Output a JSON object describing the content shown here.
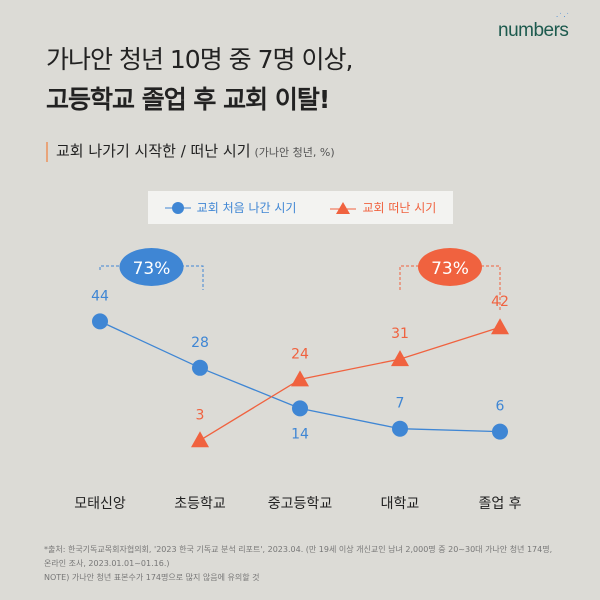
{
  "logo": "numbers",
  "title": {
    "line1": "가나안 청년 10명 중 7명 이상,",
    "line2": "고등학교 졸업 후 교회 이탈!"
  },
  "subtitle": {
    "main": "교회 나가기 시작한 / 떠난 시기",
    "note": "(가나안 청년, %)"
  },
  "colors": {
    "blue": "#3f86d4",
    "red": "#f0623f"
  },
  "chart_data": {
    "type": "line",
    "categories": [
      "모태신앙",
      "초등학교",
      "중고등학교",
      "대학교",
      "졸업 후"
    ],
    "series": [
      {
        "name": "교회 처음 나간 시기",
        "values": [
          44,
          28,
          14,
          7,
          6
        ],
        "marker": "circle"
      },
      {
        "name": "교회 떠난 시기",
        "values": [
          null,
          3,
          24,
          31,
          42
        ],
        "marker": "triangle"
      }
    ],
    "annotations": [
      {
        "text": "73%",
        "series": 0,
        "span": [
          "모태신앙",
          "초등학교"
        ]
      },
      {
        "text": "73%",
        "series": 1,
        "span": [
          "대학교",
          "졸업 후"
        ]
      }
    ],
    "ylim": [
      0,
      50
    ],
    "legend": "top"
  },
  "footer": {
    "line1": "*출처: 한국기독교목회자협의회, '2023 한국 기독교 분석 리포트', 2023.04. (만 19세 이상 개신교인 남녀 2,000명 중 20~30대 가나안  청년 174명,",
    "line2": "온라인 조사, 2023.01.01~01.16.)",
    "line3": "NOTE) 가나안 청년 표본수가 174명으로 많지 않음에 유의할 것"
  }
}
